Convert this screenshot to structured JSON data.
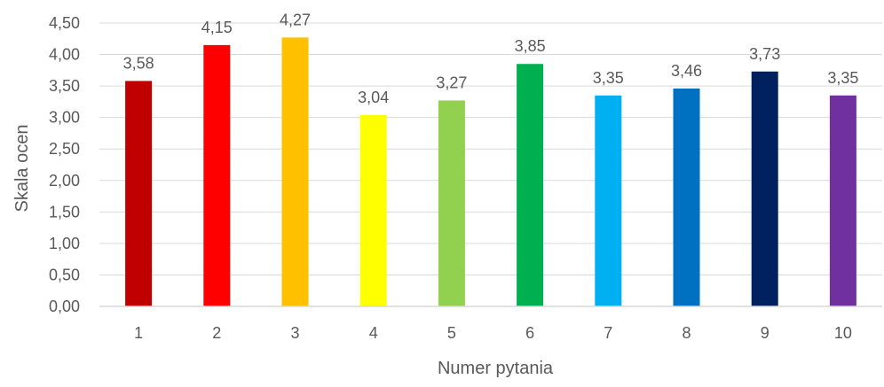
{
  "chart_data": {
    "type": "bar",
    "categories": [
      "1",
      "2",
      "3",
      "4",
      "5",
      "6",
      "7",
      "8",
      "9",
      "10"
    ],
    "values": [
      3.58,
      4.15,
      4.27,
      3.04,
      3.27,
      3.85,
      3.35,
      3.46,
      3.73,
      3.35
    ],
    "data_labels": [
      "3,58",
      "4,15",
      "4,27",
      "3,04",
      "3,27",
      "3,85",
      "3,35",
      "3,46",
      "3,73",
      "3,35"
    ],
    "bar_colors": [
      "#C00000",
      "#FF0000",
      "#FFC000",
      "#FFFF00",
      "#92D050",
      "#00B050",
      "#00B0F0",
      "#0070C0",
      "#002060",
      "#7030A0"
    ],
    "title": "",
    "xlabel": "Numer pytania",
    "ylabel": "Skala ocen",
    "ylim": [
      0,
      4.5
    ],
    "y_ticks": [
      0,
      0.5,
      1,
      1.5,
      2,
      2.5,
      3,
      3.5,
      4,
      4.5
    ],
    "y_tick_labels": [
      "0,00",
      "0,50",
      "1,00",
      "1,50",
      "2,00",
      "2,50",
      "3,00",
      "3,50",
      "4,00",
      "4,50"
    ],
    "grid": true,
    "grid_color": "#D9D9D9",
    "legend": "none"
  }
}
